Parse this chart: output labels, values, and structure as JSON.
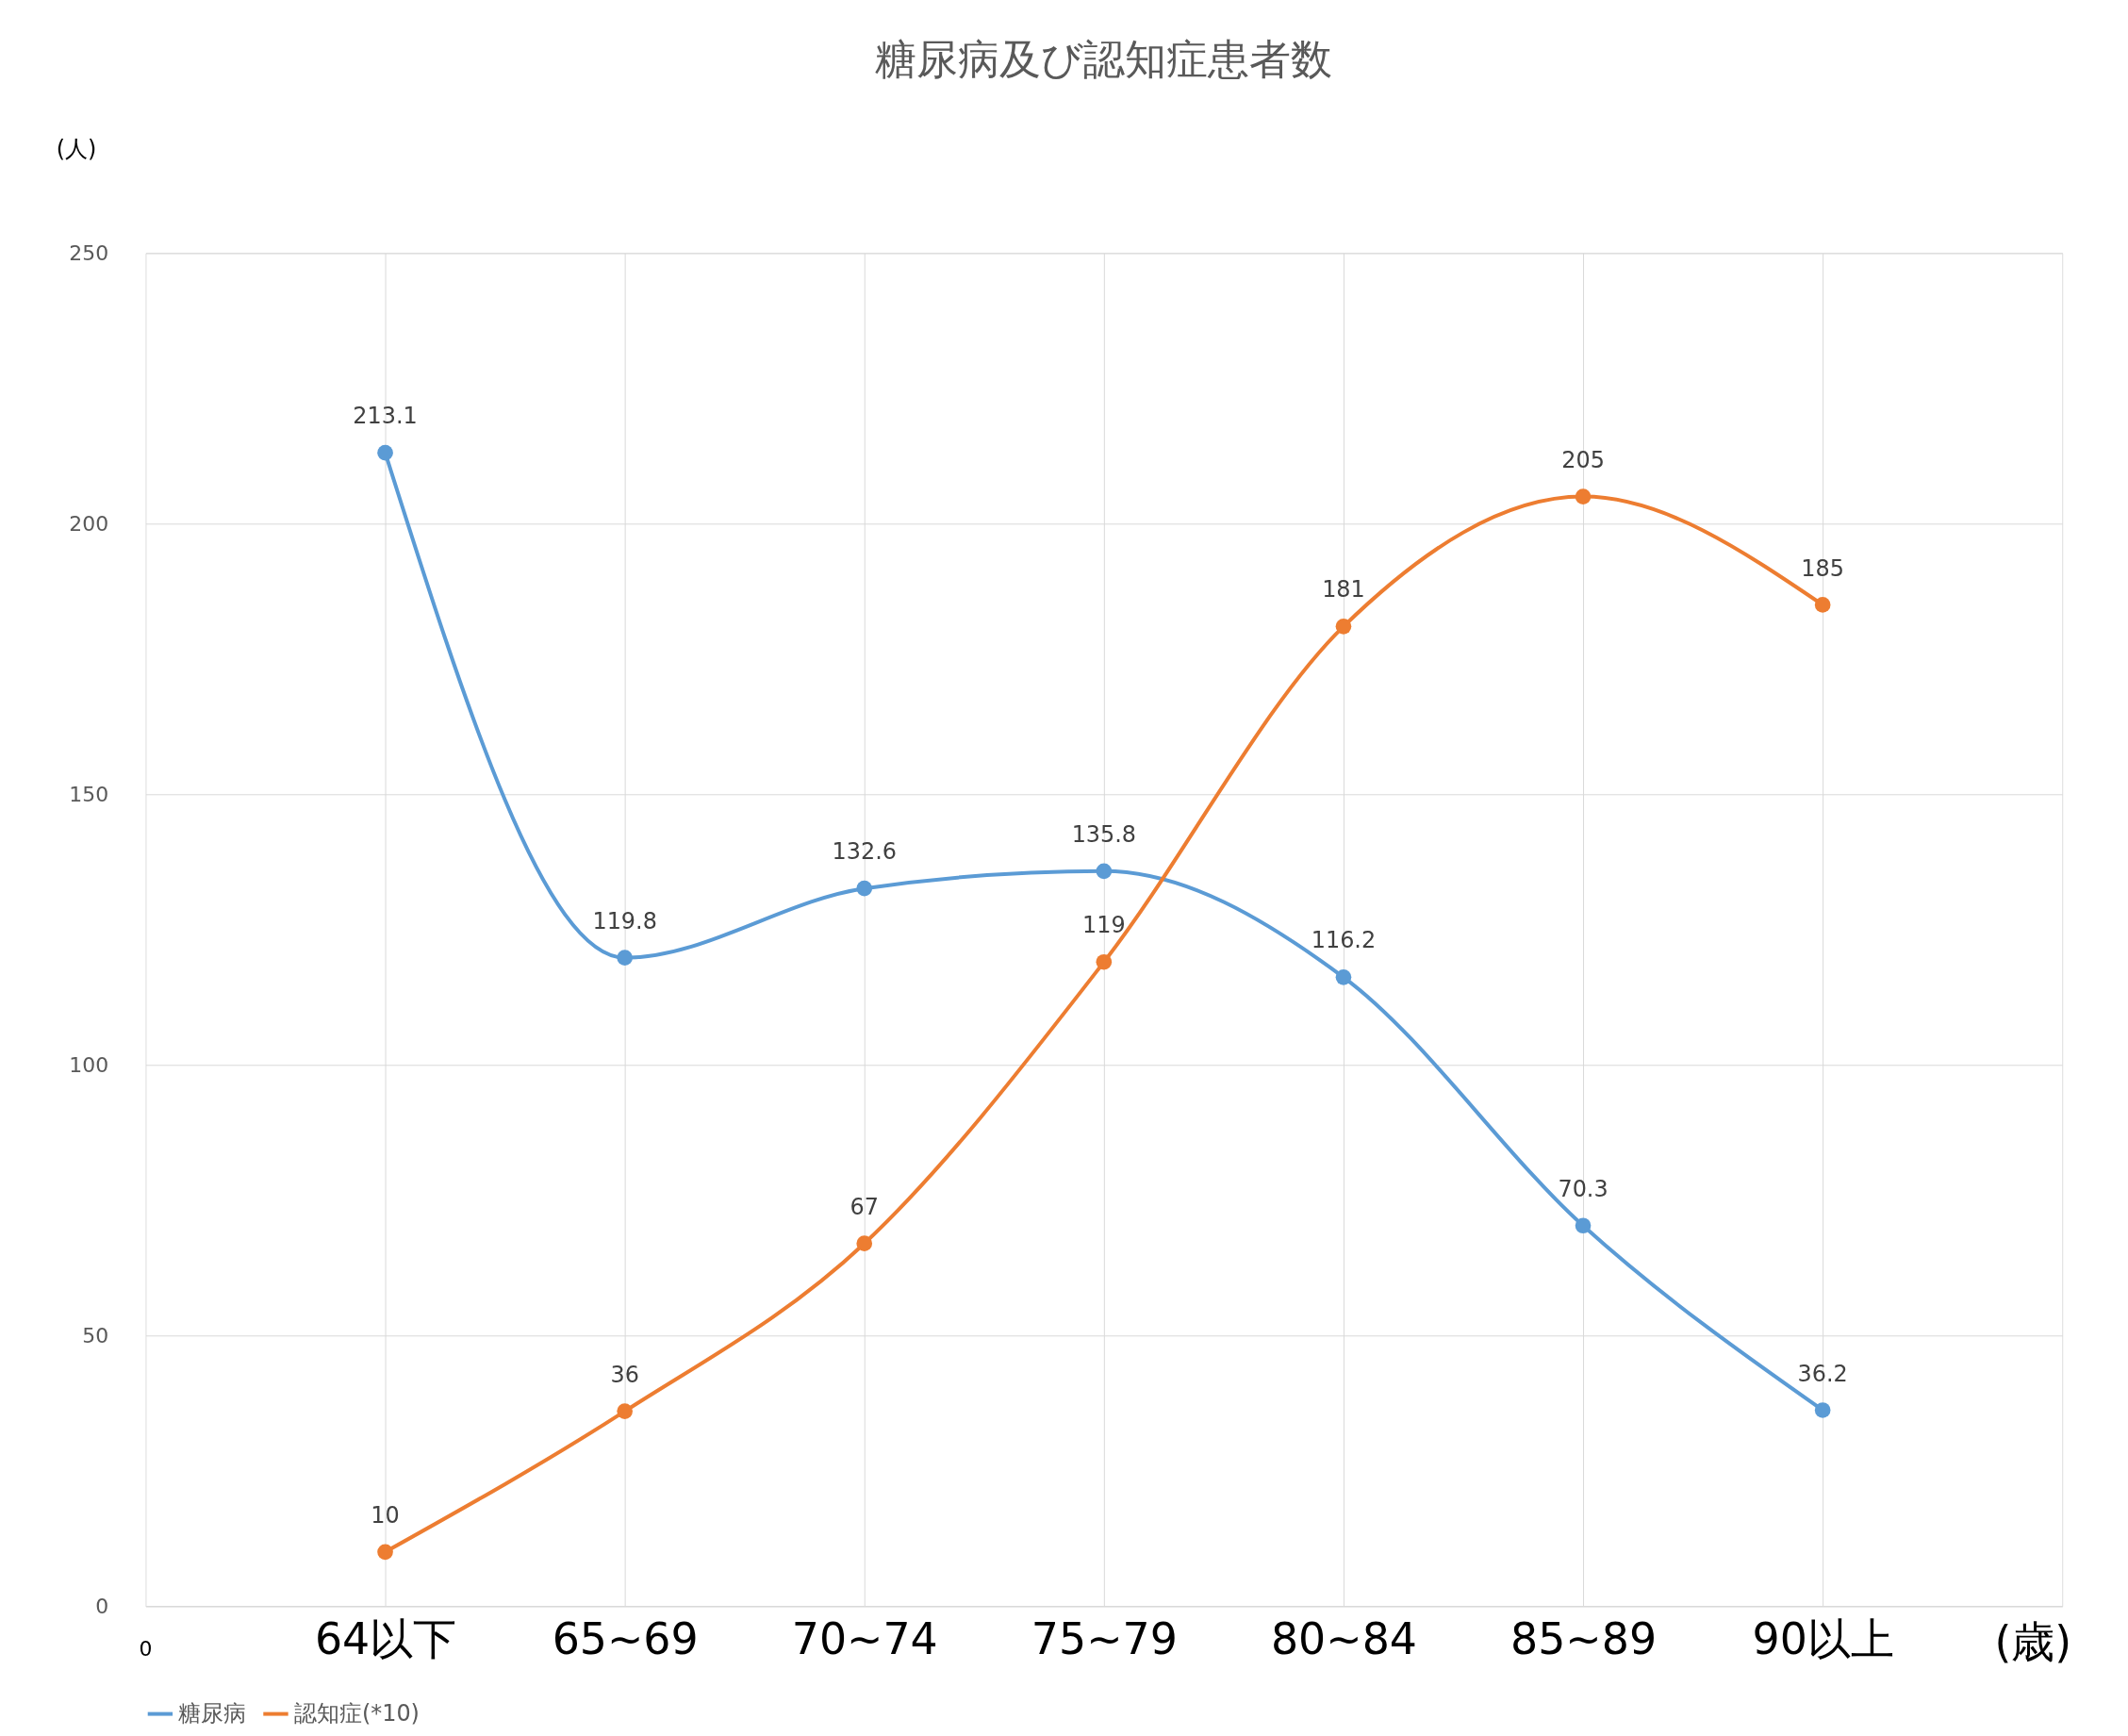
{
  "chart_data": {
    "type": "line",
    "title": "糖尿病及び認知症患者数",
    "ylabel": "(人)",
    "categories": [
      "64以下",
      "65~69",
      "70~74",
      "75~79",
      "80~84",
      "85~89",
      "90以上"
    ],
    "series": [
      {
        "name": "糖尿病",
        "color": "#5b9bd5",
        "values": [
          213.1,
          119.8,
          132.6,
          135.8,
          116.2,
          70.3,
          36.2
        ]
      },
      {
        "name": "認知症(*10)",
        "color": "#ed7d31",
        "values": [
          10,
          36,
          67,
          119,
          181,
          205,
          185
        ]
      }
    ],
    "annotations": [
      "0",
      "(歳)"
    ],
    "ylim": [
      0,
      250
    ],
    "yticks": [
      0,
      50,
      100,
      150,
      200,
      250
    ],
    "grid": true,
    "legend": "bottom",
    "marker": "circle",
    "line_style": "solid",
    "data_labels": true
  }
}
